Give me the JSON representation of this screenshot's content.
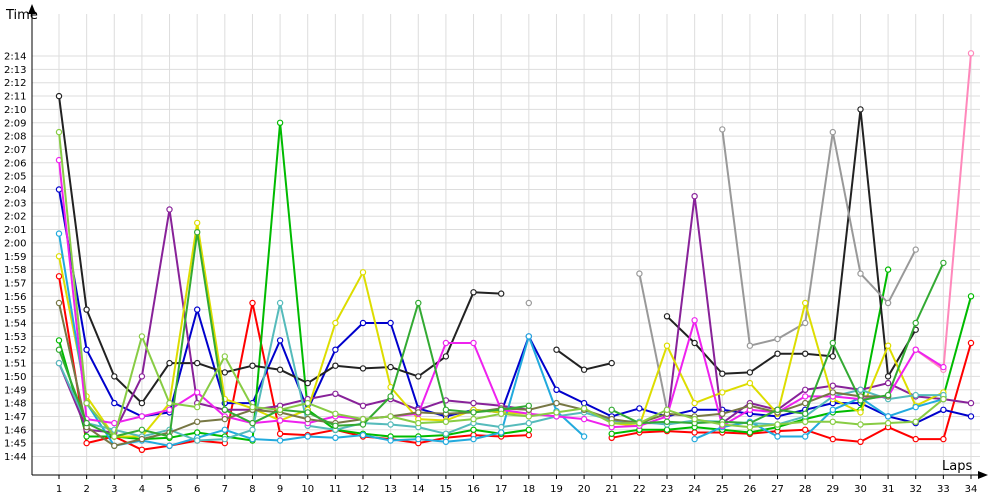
{
  "chart_data": {
    "type": "line",
    "xlabel": "Laps",
    "ylabel": "Time",
    "x": [
      1,
      2,
      3,
      4,
      5,
      6,
      7,
      8,
      9,
      10,
      11,
      12,
      13,
      14,
      15,
      16,
      17,
      18,
      19,
      20,
      21,
      22,
      23,
      24,
      25,
      26,
      27,
      28,
      29,
      30,
      31,
      32,
      33,
      34
    ],
    "y_ticks": [
      "1:44",
      "1:45",
      "1:46",
      "1:47",
      "1:48",
      "1:49",
      "1:50",
      "1:51",
      "1:52",
      "1:53",
      "1:54",
      "1:55",
      "1:56",
      "1:57",
      "1:58",
      "1:59",
      "2:00",
      "2:01",
      "2:02",
      "2:03",
      "2:04",
      "2:05",
      "2:06",
      "2:07",
      "2:08",
      "2:09",
      "2:10",
      "2:11",
      "2:12",
      "2:13",
      "2:14"
    ],
    "ylim_seconds": [
      103,
      139
    ],
    "grid": true,
    "legend": "none",
    "series": [
      {
        "color": "#ff0000",
        "values": [
          117.5,
          105,
          105.5,
          104.5,
          104.8,
          105.2,
          105,
          115.5,
          105.7,
          105.6,
          106,
          105.5,
          105.3,
          105,
          105.4,
          105.6,
          105.5,
          105.6,
          null,
          null,
          105.4,
          105.8,
          105.9,
          105.8,
          105.8,
          105.7,
          105.9,
          106,
          105.3,
          105.1,
          106.2,
          105.3,
          105.3,
          112.5
        ]
      },
      {
        "color": "#0000cc",
        "values": [
          124,
          112,
          108,
          107,
          107.3,
          115,
          108,
          108,
          112.7,
          107.5,
          112,
          114,
          114,
          107.6,
          107,
          107.5,
          107.3,
          113,
          109,
          108,
          107,
          107.6,
          107,
          107.5,
          107.5,
          107.2,
          107,
          107.5,
          108,
          108,
          107,
          106.5,
          107.5,
          107
        ]
      },
      {
        "color": "#00bb00",
        "values": [
          112.7,
          105.5,
          105.5,
          105.3,
          105.4,
          105.8,
          105.5,
          105.2,
          129,
          107.5,
          106,
          105.7,
          105.5,
          105.5,
          105.6,
          106,
          105.7,
          106,
          null,
          null,
          105.7,
          106,
          106,
          106.2,
          106,
          105.8,
          106.2,
          106.8,
          107.3,
          107.5,
          118,
          null,
          108.5,
          116
        ]
      },
      {
        "color": "#222222",
        "values": [
          131,
          115,
          110,
          108,
          111,
          111,
          110.3,
          110.8,
          110.5,
          109.5,
          110.8,
          110.6,
          110.7,
          110,
          111.5,
          116.3,
          116.2,
          null,
          112,
          110.5,
          111,
          null,
          114.5,
          112.5,
          110.2,
          110.3,
          111.7,
          111.7,
          111.5,
          130,
          110,
          113.5,
          null,
          null
        ]
      },
      {
        "color": "#999999",
        "values": [
          null,
          null,
          null,
          null,
          null,
          null,
          null,
          null,
          null,
          null,
          null,
          null,
          null,
          null,
          null,
          null,
          null,
          115.5,
          null,
          null,
          null,
          117.7,
          107.5,
          null,
          128.5,
          112.3,
          112.8,
          114,
          128.3,
          117.7,
          115.5,
          119.5,
          null,
          null
        ]
      },
      {
        "color": "#ff88bb",
        "values": [
          null,
          null,
          null,
          null,
          null,
          null,
          null,
          null,
          null,
          null,
          null,
          null,
          null,
          null,
          null,
          null,
          null,
          null,
          null,
          null,
          null,
          null,
          null,
          null,
          null,
          null,
          null,
          null,
          null,
          null,
          null,
          112,
          110.5,
          134.2
        ]
      },
      {
        "color": "#882299",
        "values": [
          111,
          106,
          105.8,
          110,
          122.5,
          108,
          107.5,
          107.5,
          107.8,
          108.3,
          108.7,
          107.8,
          108.3,
          107.5,
          108.2,
          108,
          107.8,
          107.5,
          null,
          null,
          106.7,
          106.5,
          106.5,
          123.5,
          106.5,
          108,
          107.5,
          109,
          109.3,
          109,
          109.5,
          108.5,
          108.3,
          108
        ]
      },
      {
        "color": "#dddd00",
        "values": [
          119,
          108.5,
          105.5,
          105.5,
          108,
          121.5,
          108.3,
          107.6,
          106.7,
          107.5,
          114,
          117.8,
          109.2,
          106.8,
          106.7,
          107.5,
          107.3,
          107.2,
          null,
          null,
          106.5,
          106.3,
          112.3,
          108,
          108.8,
          109.5,
          107.2,
          115.5,
          108.3,
          107.3,
          112.3,
          107.8,
          108.8,
          null
        ]
      },
      {
        "color": "#22aadd",
        "values": [
          120.7,
          108,
          104.8,
          105.2,
          104.8,
          105.4,
          106,
          105.3,
          105.2,
          105.5,
          105.4,
          105.6,
          105.2,
          105.3,
          105.1,
          105.3,
          105.8,
          113,
          107.4,
          105.5,
          null,
          null,
          null,
          105.3,
          106.2,
          106.6,
          105.5,
          105.5,
          107.5,
          108.4,
          107,
          107.7,
          108.3,
          null
        ]
      },
      {
        "color": "#55bbbb",
        "values": [
          111,
          106.5,
          106,
          105.5,
          106,
          105.2,
          105.3,
          106,
          115.5,
          106.3,
          106,
          106.5,
          106.4,
          106.2,
          105.7,
          106.5,
          106.2,
          106.5,
          107,
          107.3,
          106.7,
          106.6,
          106.4,
          106.7,
          106.6,
          106.5,
          106.4,
          107,
          108.5,
          109,
          108.3,
          108.6,
          108.6,
          null
        ]
      },
      {
        "color": "#ee22ee",
        "values": [
          126.2,
          106.8,
          106.5,
          107,
          107.5,
          108.8,
          107,
          106.5,
          106.7,
          106.5,
          107,
          106.8,
          107,
          107.2,
          112.5,
          112.5,
          107.5,
          107.2,
          107,
          106.8,
          106.2,
          106.3,
          107,
          114.2,
          106.3,
          107.5,
          107.3,
          108.5,
          108.5,
          108.3,
          108.5,
          112,
          110.7,
          null
        ]
      },
      {
        "color": "#777744",
        "values": [
          115.5,
          106.2,
          104.8,
          105.3,
          105.8,
          106.6,
          106.8,
          107.5,
          107.3,
          106.8,
          106.5,
          106.8,
          107,
          107.3,
          107.2,
          107.3,
          107.6,
          107.5,
          108,
          107.5,
          106.8,
          106.5,
          107.2,
          107,
          107.2,
          107.8,
          107.3,
          108,
          108.8,
          108.5,
          108.5,
          null,
          null,
          null
        ]
      },
      {
        "color": "#33aa33",
        "values": [
          112,
          106.5,
          105.5,
          106,
          105.5,
          120.8,
          107.5,
          106.5,
          107.5,
          107.3,
          106.3,
          106.4,
          108.5,
          115.5,
          107.5,
          107.3,
          107.5,
          107.8,
          null,
          null,
          107.5,
          106.5,
          106.6,
          106.5,
          106.6,
          106.5,
          107.5,
          107.2,
          112.5,
          108.2,
          108.6,
          114,
          118.5,
          null
        ]
      },
      {
        "color": "#88cc44",
        "values": [
          128.3,
          108,
          105.5,
          113,
          108,
          107.7,
          111.5,
          107.7,
          107.5,
          108,
          107.2,
          106.8,
          107,
          106.5,
          106.6,
          106.8,
          107.2,
          107,
          107.3,
          107.6,
          106.5,
          106.5,
          107.5,
          106.8,
          106.4,
          106.2,
          106.4,
          106.6,
          106.6,
          106.4,
          106.5,
          106.6,
          108.3,
          null
        ]
      }
    ]
  }
}
